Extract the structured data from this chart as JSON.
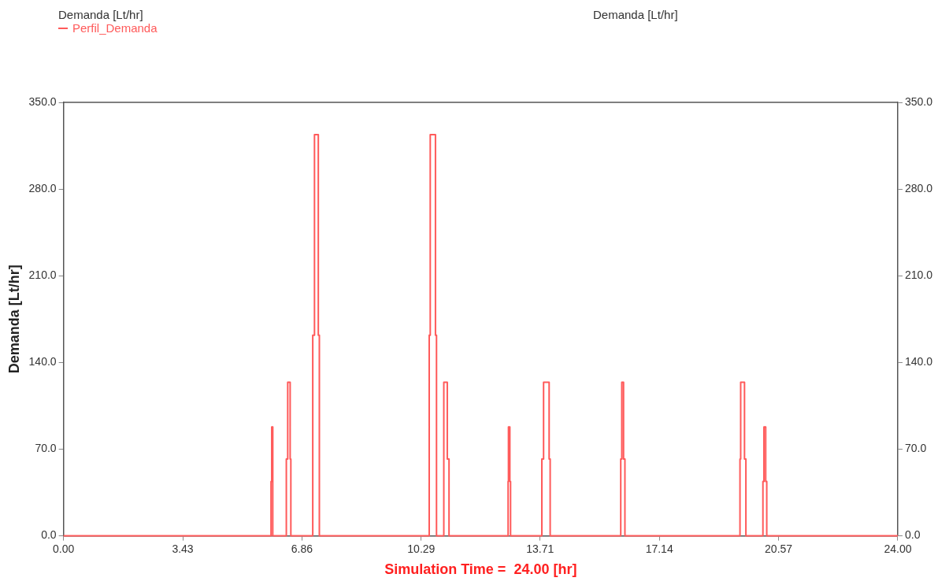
{
  "chart_data": {
    "type": "step",
    "title": "Demanda [Lt/hr]",
    "legend_title": "Demanda [Lt/hr]",
    "xlabel": "Simulation Time =  24.00 [hr]",
    "ylabel": "Demanda [Lt/hr]",
    "x": [
      0,
      5.97,
      5.99,
      6.02,
      6.41,
      6.45,
      6.52,
      6.54,
      7.17,
      7.22,
      7.33,
      7.36,
      10.52,
      10.55,
      10.7,
      10.73,
      10.94,
      11.04,
      11.09,
      12.79,
      12.8,
      12.84,
      12.86,
      13.76,
      13.81,
      13.97,
      14.0,
      16.03,
      16.06,
      16.11,
      16.15,
      19.46,
      19.48,
      19.59,
      19.63,
      20.12,
      20.15,
      20.2,
      20.23,
      24
    ],
    "series": [
      {
        "name": "Perfil_Demanda",
        "color": "#ff5a5a",
        "values": [
          0,
          44,
          88,
          0,
          62,
          124,
          62,
          0,
          162,
          324,
          162,
          0,
          162,
          324,
          162,
          0,
          124,
          62,
          0,
          44,
          88,
          44,
          0,
          62,
          124,
          62,
          0,
          62,
          124,
          62,
          0,
          62,
          124,
          62,
          0,
          44,
          88,
          44,
          0,
          0
        ]
      }
    ],
    "xlim": [
      0,
      24
    ],
    "xticks": [
      {
        "value": 0,
        "label": "0.00"
      },
      {
        "value": 3.43,
        "label": "3.43"
      },
      {
        "value": 6.86,
        "label": "6.86"
      },
      {
        "value": 10.29,
        "label": "10.29"
      },
      {
        "value": 13.71,
        "label": "13.71"
      },
      {
        "value": 17.14,
        "label": "17.14"
      },
      {
        "value": 20.57,
        "label": "20.57"
      },
      {
        "value": 24,
        "label": "24.00"
      }
    ],
    "ylim": [
      0,
      350
    ],
    "yticks": [
      {
        "value": 0,
        "label": "0.0"
      },
      {
        "value": 70,
        "label": "70.0"
      },
      {
        "value": 140,
        "label": "140.0"
      },
      {
        "value": 210,
        "label": "210.0"
      },
      {
        "value": 280,
        "label": "280.0"
      },
      {
        "value": 350,
        "label": "350.0"
      }
    ],
    "y2lim": [
      0,
      350
    ],
    "y2ticks": [
      {
        "value": 0,
        "label": "0.0"
      },
      {
        "value": 70,
        "label": "70.0"
      },
      {
        "value": 140,
        "label": "140.0"
      },
      {
        "value": 210,
        "label": "210.0"
      },
      {
        "value": 280,
        "label": "280.0"
      },
      {
        "value": 350,
        "label": "350.0"
      }
    ],
    "grid": false,
    "legend": "top left",
    "marker": "none",
    "line_style": "solid"
  }
}
